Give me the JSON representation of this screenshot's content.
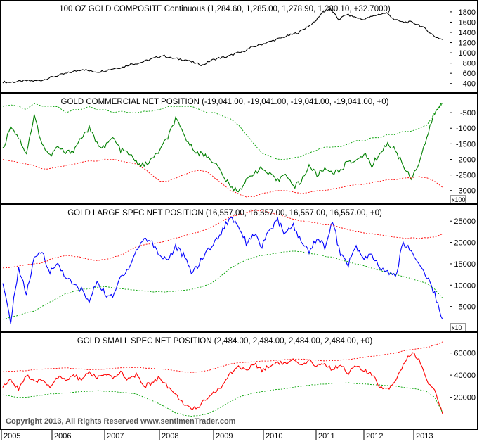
{
  "colors": {
    "gold_price": "#000000",
    "commercial": "#008000",
    "large_spec": "#0000ff",
    "small_spec": "#ff0000",
    "band_upper_green": "#00a000",
    "band_lower_red": "#ff0000",
    "band_upper_red": "#ff0000",
    "band_lower_green": "#00a000"
  },
  "xaxis": {
    "ticks": [
      "2005",
      "2006",
      "2007",
      "2008",
      "2009",
      "2010",
      "2011",
      "2012",
      "2013"
    ]
  },
  "copyright": "Copyright 2013, All Rights Reserved  www.sentimenTrader.com",
  "chart_data": [
    {
      "type": "line",
      "title": "100 OZ GOLD COMPOSITE Continuous (1,284.60, 1,285.00, 1,278.90, 1,280.10, +32.7000)",
      "yticks": [
        "400",
        "600",
        "800",
        "1000",
        "1200",
        "1400",
        "1600",
        "1800"
      ],
      "ylim": [
        300,
        1950
      ],
      "multiplier": "",
      "series": [
        {
          "values": [
            430,
            425,
            440,
            455,
            450,
            470,
            520,
            560,
            600,
            640,
            680,
            640,
            630,
            660,
            700,
            720,
            780,
            800,
            850,
            900,
            950,
            900,
            880,
            860,
            800,
            760,
            850,
            900,
            920,
            980,
            1020,
            1100,
            1150,
            1200,
            1250,
            1300,
            1350,
            1400,
            1500,
            1600,
            1800,
            1850,
            1650,
            1750,
            1700,
            1650,
            1700,
            1750,
            1780,
            1650,
            1600,
            1600,
            1550,
            1450,
            1320,
            1260
          ]
        }
      ]
    },
    {
      "type": "line",
      "title": "GOLD COMMERCIAL NET POSITION (-19,041.00, -19,041.00, -19,041.00, -19,041.00, +0)",
      "yticks": [
        "-500",
        "-1000",
        "-1500",
        "-2000",
        "-2500",
        "-3000"
      ],
      "ylim": [
        -3300,
        0
      ],
      "multiplier": "x100",
      "series": [
        {
          "values": [
            -1700,
            -900,
            -1300,
            -1800,
            -600,
            -1500,
            -1900,
            -1600,
            -1800,
            -1700,
            -1300,
            -1000,
            -1500,
            -1600,
            -1300,
            -1700,
            -1800,
            -2100,
            -2200,
            -2000,
            -1700,
            -1300,
            -700,
            -1200,
            -1600,
            -1800,
            -1900,
            -2100,
            -2500,
            -2900,
            -3000,
            -2700,
            -2400,
            -2300,
            -2500,
            -2700,
            -2400,
            -2900,
            -2700,
            -2200,
            -2500,
            -2300,
            -2400,
            -2400,
            -2000,
            -2100,
            -1800,
            -2200,
            -1800,
            -1500,
            -1700,
            -2200,
            -2600,
            -2100,
            -1300,
            -500,
            -200
          ]
        },
        {
          "values": [
            -300,
            -250,
            -300,
            -400,
            -200,
            -300,
            -300,
            -300,
            -500,
            -400,
            -400,
            -300,
            -400,
            -400,
            -500,
            -450,
            -500,
            -500,
            -450,
            -450,
            -400,
            -300,
            -300,
            -300,
            -300,
            -400,
            -500,
            -500,
            -600,
            -700,
            -900,
            -1200,
            -1500,
            -1800,
            -1900,
            -2000,
            -2000,
            -1950,
            -1900,
            -1800,
            -1700,
            -1600,
            -1600,
            -1600,
            -1500,
            -1400,
            -1400,
            -1300,
            -1300,
            -1200,
            -1200,
            -1100,
            -1100,
            -1000,
            -900,
            -500,
            -200
          ]
        },
        {
          "values": [
            -2000,
            -2050,
            -2100,
            -2150,
            -2200,
            -2300,
            -2300,
            -2250,
            -2200,
            -2150,
            -2100,
            -2050,
            -2050,
            -2000,
            -2000,
            -2050,
            -2100,
            -2150,
            -2300,
            -2500,
            -2700,
            -2700,
            -2600,
            -2500,
            -2400,
            -2350,
            -2400,
            -2600,
            -2800,
            -3000,
            -3100,
            -3200,
            -3200,
            -3100,
            -3050,
            -3000,
            -3000,
            -3050,
            -3100,
            -3050,
            -3000,
            -3000,
            -2950,
            -2900,
            -2850,
            -2800,
            -2800,
            -2750,
            -2700,
            -2650,
            -2650,
            -2600,
            -2600,
            -2550,
            -2600,
            -2700,
            -2900
          ]
        }
      ]
    },
    {
      "type": "line",
      "title": "GOLD LARGE SPEC NET POSITION (16,557.00, 16,557.00, 16,557.00, 16,557.00, +0)",
      "yticks": [
        "5000",
        "10000",
        "15000",
        "20000",
        "25000"
      ],
      "ylim": [
        0,
        28000
      ],
      "multiplier": "x10",
      "series": [
        {
          "values": [
            10000,
            1500,
            14000,
            8000,
            16000,
            18000,
            13000,
            15000,
            12000,
            10000,
            9000,
            6000,
            11000,
            8000,
            7000,
            12000,
            14000,
            18000,
            21000,
            20000,
            17000,
            16000,
            19000,
            17000,
            13000,
            15000,
            18000,
            20000,
            23000,
            26000,
            24000,
            20000,
            22000,
            19000,
            23000,
            25000,
            22000,
            24000,
            20000,
            18000,
            21000,
            19000,
            25000,
            17000,
            15000,
            19000,
            16000,
            17000,
            14000,
            13000,
            12000,
            20000,
            18000,
            15000,
            12000,
            8000,
            2000
          ]
        },
        {
          "values": [
            14000,
            14200,
            14500,
            14800,
            15000,
            15200,
            16000,
            16500,
            17000,
            16800,
            16500,
            16000,
            15800,
            16000,
            16500,
            17000,
            18000,
            19000,
            19500,
            19800,
            20000,
            20500,
            21000,
            21500,
            22000,
            22500,
            23000,
            24000,
            25000,
            26000,
            26500,
            27000,
            27500,
            27500,
            27000,
            26500,
            26000,
            25500,
            25000,
            24800,
            24500,
            24200,
            24000,
            23500,
            23000,
            22500,
            22200,
            22000,
            21800,
            21500,
            21200,
            21000,
            21000,
            21000,
            21100,
            21300,
            22000
          ]
        },
        {
          "values": [
            2000,
            2500,
            3000,
            3500,
            4000,
            5000,
            6000,
            7000,
            8000,
            8500,
            9000,
            9200,
            9500,
            9600,
            9400,
            9200,
            9000,
            8800,
            8600,
            8500,
            8400,
            8500,
            8600,
            8800,
            9000,
            9500,
            10000,
            11000,
            12500,
            14000,
            15000,
            16000,
            16500,
            17000,
            17200,
            17500,
            17800,
            18000,
            17800,
            17500,
            17200,
            16800,
            16500,
            16000,
            15500,
            15000,
            14500,
            14000,
            13500,
            13000,
            12500,
            12000,
            11500,
            11000,
            10500,
            9000,
            7000
          ]
        }
      ]
    },
    {
      "type": "line",
      "title": "GOLD SMALL SPEC NET POSITION (2,484.00, 2,484.00, 2,484.00, 2,484.00, +0)",
      "yticks": [
        "20000",
        "40000",
        "60000"
      ],
      "ylim": [
        -5000,
        75000
      ],
      "multiplier": "",
      "series": [
        {
          "values": [
            30000,
            35000,
            28000,
            40000,
            33000,
            36000,
            30000,
            38000,
            35000,
            40000,
            36000,
            42000,
            38000,
            40000,
            37000,
            43000,
            36000,
            40000,
            30000,
            33000,
            38000,
            30000,
            22000,
            15000,
            8000,
            12000,
            20000,
            25000,
            30000,
            42000,
            48000,
            44000,
            50000,
            45000,
            48000,
            52000,
            50000,
            53000,
            48000,
            52000,
            49000,
            50000,
            45000,
            50000,
            42000,
            48000,
            44000,
            40000,
            30000,
            28000,
            35000,
            50000,
            60000,
            55000,
            35000,
            25000,
            5000
          ]
        },
        {
          "values": [
            43000,
            43500,
            44000,
            44000,
            45000,
            45500,
            46000,
            46000,
            46500,
            46000,
            45500,
            45000,
            45000,
            45500,
            46000,
            46500,
            47000,
            47000,
            46500,
            46000,
            45500,
            45000,
            44000,
            43000,
            42500,
            43000,
            44000,
            46000,
            48000,
            50000,
            51000,
            51500,
            52000,
            52500,
            53000,
            53500,
            54000,
            54500,
            54500,
            54000,
            53500,
            53000,
            53000,
            53500,
            54000,
            55000,
            56000,
            57000,
            58000,
            59000,
            60000,
            62000,
            63000,
            64000,
            65000,
            67000,
            70000
          ]
        },
        {
          "values": [
            22000,
            21000,
            20000,
            20000,
            21000,
            22000,
            23000,
            23500,
            24000,
            24500,
            25000,
            25500,
            26000,
            25500,
            25000,
            24500,
            24000,
            23000,
            20000,
            17000,
            14000,
            10000,
            6000,
            4000,
            3000,
            3500,
            5000,
            8000,
            12000,
            16000,
            20000,
            22000,
            24000,
            25000,
            26000,
            27000,
            28000,
            29000,
            30000,
            31000,
            31500,
            32000,
            32500,
            33000,
            33000,
            32500,
            32000,
            31500,
            31000,
            30500,
            30000,
            29000,
            28000,
            27000,
            25000,
            20000,
            6000
          ]
        }
      ]
    }
  ]
}
